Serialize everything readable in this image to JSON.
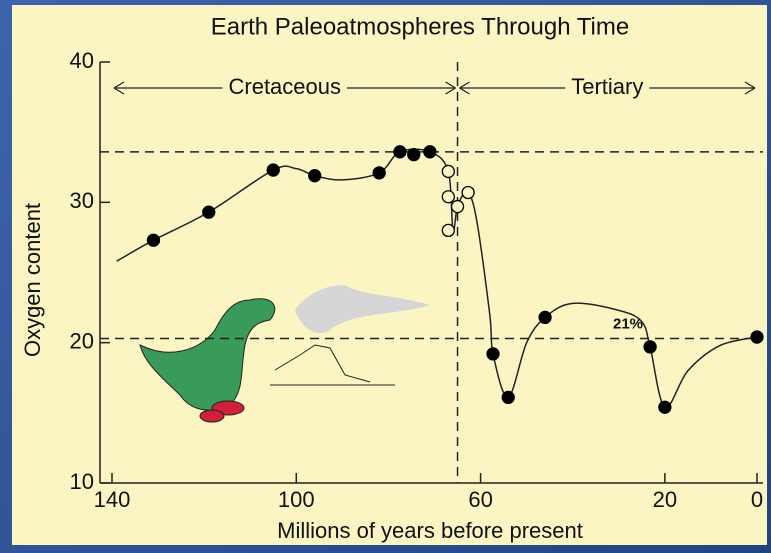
{
  "chart_data": {
    "type": "line",
    "title": "Earth Paleoatmospheres Through Time",
    "x_label": "Millions of years before present",
    "y_label": "Oxygen content",
    "xlim": [
      140,
      0
    ],
    "ylim": [
      10,
      40
    ],
    "xticks": [
      140,
      100,
      60,
      20,
      0
    ],
    "yticks": [
      10,
      20,
      30,
      40
    ],
    "series": [
      {
        "style": "curve",
        "color": "#222222",
        "x": [
          139,
          131,
          119,
          105,
          100,
          96,
          90,
          82,
          77.5,
          71,
          67,
          66,
          65,
          63,
          61,
          58,
          57.3,
          54,
          50,
          46,
          40,
          30,
          25,
          23.2,
          20,
          15,
          8,
          0
        ],
        "values": [
          25.8,
          27.3,
          29.3,
          32.3,
          32.4,
          31.9,
          31.6,
          32.1,
          33.6,
          33.6,
          32.2,
          28,
          29.7,
          30.7,
          29,
          22,
          19.2,
          16.1,
          20,
          21.8,
          22.8,
          22.3,
          21.5,
          19.7,
          15.4,
          18,
          19.8,
          20.4
        ]
      },
      {
        "style": "filled",
        "color": "#000000",
        "x": [
          131,
          119,
          105,
          96,
          82,
          77.5,
          74.5,
          71,
          57.3,
          54,
          46,
          23.2,
          20,
          0
        ],
        "values": [
          27.3,
          29.3,
          32.3,
          31.9,
          32.1,
          33.6,
          33.4,
          33.6,
          19.2,
          16.1,
          21.8,
          19.7,
          15.4,
          20.4
        ]
      },
      {
        "style": "open",
        "color": "#000000",
        "x": [
          67,
          67,
          67,
          65,
          62.7
        ],
        "values": [
          32.2,
          30.4,
          28,
          29.7,
          30.7
        ]
      }
    ],
    "hlines": [
      33.6,
      20.3
    ],
    "vline": 65,
    "periods": [
      {
        "label": "Cretaceous",
        "start": 140,
        "end": 65
      },
      {
        "label": "Tertiary",
        "start": 65,
        "end": 0
      }
    ],
    "annotation": {
      "text": "21%",
      "x": 28,
      "y": 21.3
    }
  }
}
